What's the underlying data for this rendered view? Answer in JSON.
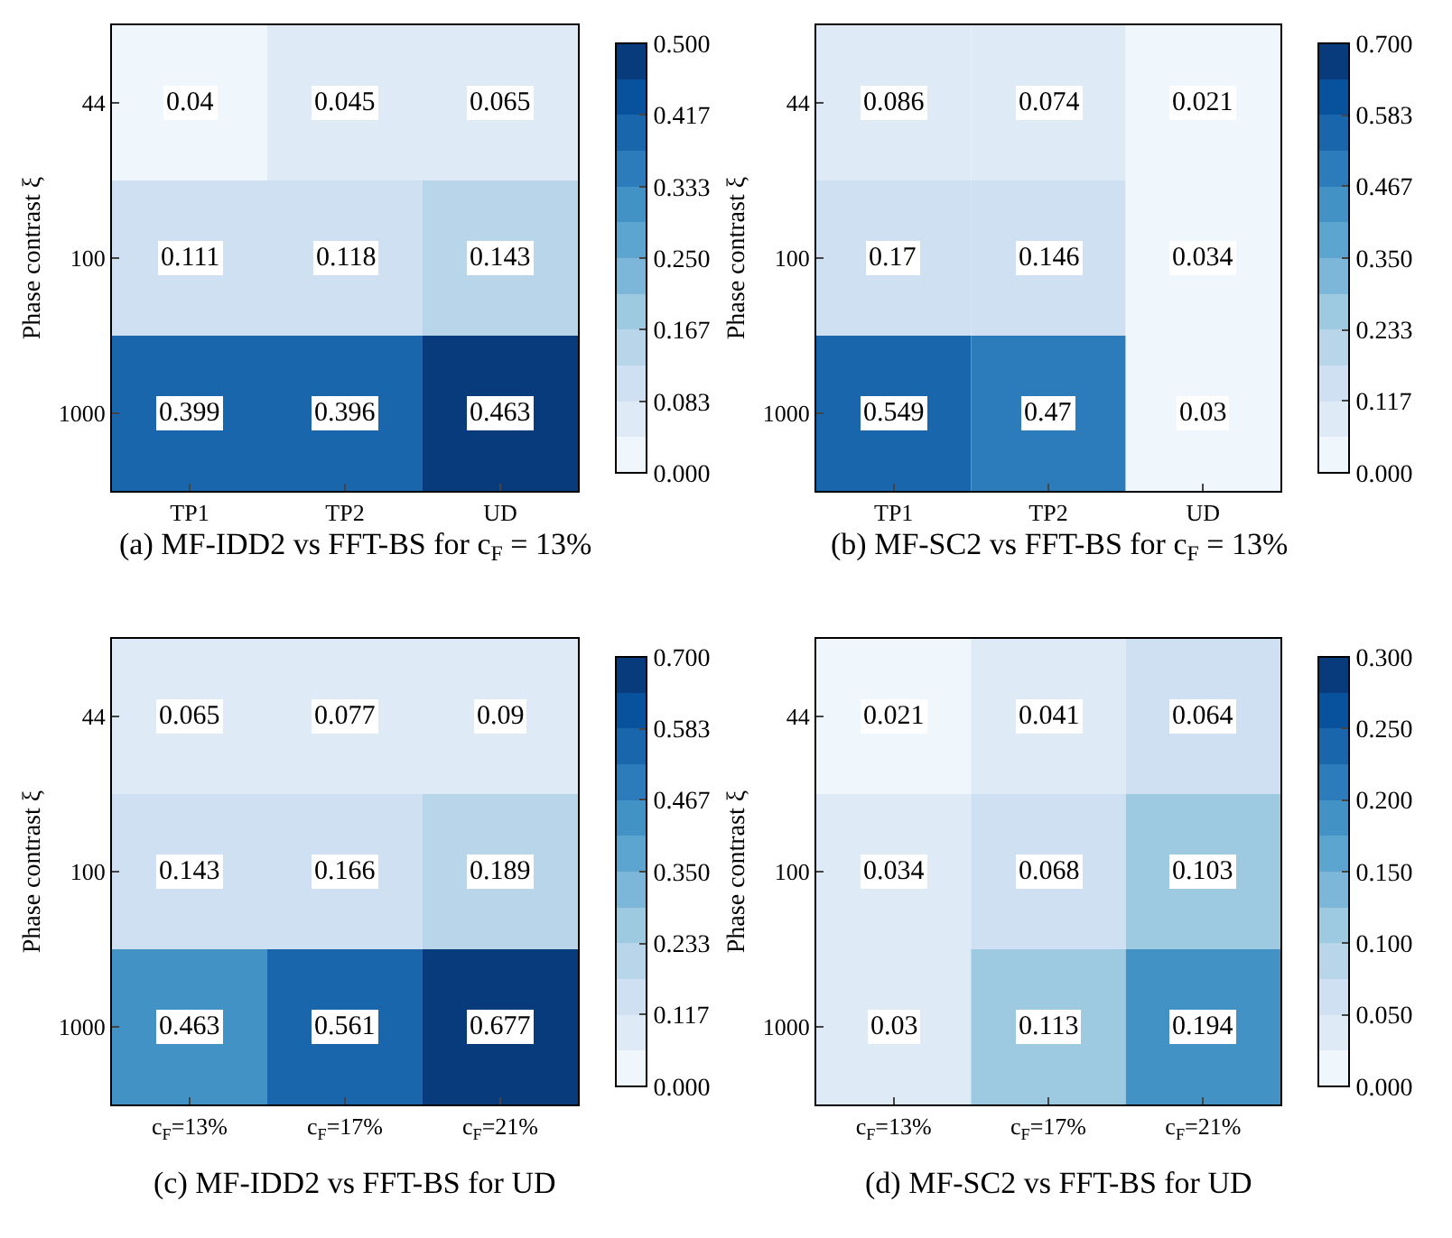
{
  "chart_data": [
    {
      "type": "heatmap",
      "title": "(a) MF-IDD2 vs FFT-BS for c$_{F}$ = 13%",
      "ylabel": "Phase contrast ξ",
      "categories": [
        "TP1",
        "TP2",
        "UD"
      ],
      "y_categories": [
        "44",
        "100",
        "1000"
      ],
      "cells": [
        [
          0.04,
          0.045,
          0.065
        ],
        [
          0.111,
          0.118,
          0.143
        ],
        [
          0.399,
          0.396,
          0.463
        ]
      ],
      "clim": [
        0,
        0.5
      ],
      "cticks": [
        {
          "value": 0,
          "label": "0.000"
        },
        {
          "value": 0.083,
          "label": "0.083"
        },
        {
          "value": 0.167,
          "label": "0.167"
        },
        {
          "value": 0.25,
          "label": "0.250"
        },
        {
          "value": 0.333,
          "label": "0.333"
        },
        {
          "value": 0.417,
          "label": "0.417"
        },
        {
          "value": 0.5,
          "label": "0.500"
        }
      ],
      "data_labels": true
    },
    {
      "type": "heatmap",
      "title": "(b) MF-SC2 vs FFT-BS for c$_{F}$ = 13%",
      "ylabel": "Phase contrast ξ",
      "categories": [
        "TP1",
        "TP2",
        "UD"
      ],
      "y_categories": [
        "44",
        "100",
        "1000"
      ],
      "cells": [
        [
          0.086,
          0.074,
          0.021
        ],
        [
          0.17,
          0.146,
          0.034
        ],
        [
          0.549,
          0.47,
          0.03
        ]
      ],
      "clim": [
        0,
        0.7
      ],
      "cticks": [
        {
          "value": 0,
          "label": "0.000"
        },
        {
          "value": 0.117,
          "label": "0.117"
        },
        {
          "value": 0.233,
          "label": "0.233"
        },
        {
          "value": 0.35,
          "label": "0.350"
        },
        {
          "value": 0.467,
          "label": "0.467"
        },
        {
          "value": 0.583,
          "label": "0.583"
        },
        {
          "value": 0.7,
          "label": "0.700"
        }
      ],
      "data_labels": true
    },
    {
      "type": "heatmap",
      "title": "(c) MF-IDD2 vs FFT-BS for UD",
      "ylabel": "Phase contrast ξ",
      "categories": [
        "c$_{F}$=13%",
        "c$_{F}$=17%",
        "c$_{F}$=21%"
      ],
      "y_categories": [
        "44",
        "100",
        "1000"
      ],
      "cells": [
        [
          0.065,
          0.077,
          0.09
        ],
        [
          0.143,
          0.166,
          0.189
        ],
        [
          0.463,
          0.561,
          0.677
        ]
      ],
      "clim": [
        0,
        0.7
      ],
      "cticks": [
        {
          "value": 0,
          "label": "0.000"
        },
        {
          "value": 0.117,
          "label": "0.117"
        },
        {
          "value": 0.233,
          "label": "0.233"
        },
        {
          "value": 0.35,
          "label": "0.350"
        },
        {
          "value": 0.467,
          "label": "0.467"
        },
        {
          "value": 0.583,
          "label": "0.583"
        },
        {
          "value": 0.7,
          "label": "0.700"
        }
      ],
      "data_labels": true
    },
    {
      "type": "heatmap",
      "title": "(d) MF-SC2 vs FFT-BS for UD",
      "ylabel": "Phase contrast ξ",
      "categories": [
        "c$_{F}$=13%",
        "c$_{F}$=17%",
        "c$_{F}$=21%"
      ],
      "y_categories": [
        "44",
        "100",
        "1000"
      ],
      "cells": [
        [
          0.021,
          0.041,
          0.064
        ],
        [
          0.034,
          0.068,
          0.103
        ],
        [
          0.03,
          0.113,
          0.194
        ]
      ],
      "clim": [
        0,
        0.3
      ],
      "cticks": [
        {
          "value": 0,
          "label": "0.000"
        },
        {
          "value": 0.05,
          "label": "0.050"
        },
        {
          "value": 0.1,
          "label": "0.100"
        },
        {
          "value": 0.15,
          "label": "0.150"
        },
        {
          "value": 0.2,
          "label": "0.200"
        },
        {
          "value": 0.25,
          "label": "0.250"
        },
        {
          "value": 0.3,
          "label": "0.300"
        }
      ],
      "data_labels": true
    }
  ]
}
